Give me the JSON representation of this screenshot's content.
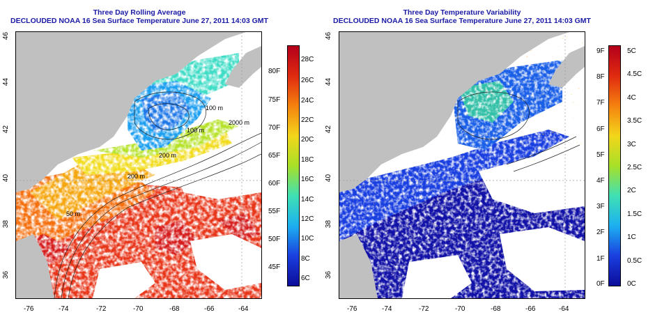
{
  "panels": {
    "avg": {
      "title": "Three Day Rolling Average",
      "subtitle": "DECLOUDED NOAA 16 Sea Surface Temperature June 27, 2011 14:03 GMT",
      "x_ticks": [
        "-76",
        "-74",
        "-72",
        "-70",
        "-68",
        "-66",
        "-64"
      ],
      "y_ticks": [
        "36",
        "38",
        "40",
        "42",
        "44",
        "46"
      ],
      "contours": [
        "100 m",
        "2000 m",
        "100 m",
        "200 m",
        "50 m",
        "200 m"
      ],
      "colorbar_celsius": [
        "28C",
        "26C",
        "24C",
        "22C",
        "20C",
        "18C",
        "16C",
        "14C",
        "12C",
        "10C",
        "8C",
        "6C"
      ],
      "colorbar_fahrenheit": [
        "80F",
        "75F",
        "70F",
        "65F",
        "60F",
        "55F",
        "50F",
        "45F"
      ],
      "colorbar_colors": [
        "#b3001b",
        "#e02a10",
        "#f5820f",
        "#f3d61b",
        "#a8e028",
        "#3fe0b4",
        "#1cb0f0",
        "#1a3fe0",
        "#0c0c99"
      ]
    },
    "var": {
      "title": "Three Day Temperature Variability",
      "subtitle": "DECLOUDED NOAA 16 Sea Surface Temperature June 27, 2011 14:03 GMT",
      "x_ticks": [
        "-76",
        "-74",
        "-72",
        "-70",
        "-68",
        "-66",
        "-64"
      ],
      "y_ticks": [
        "36",
        "38",
        "40",
        "42",
        "44",
        "46"
      ],
      "colorbar_celsius": [
        "5C",
        "4.5C",
        "4C",
        "3.5C",
        "3C",
        "2.5C",
        "2C",
        "1.5C",
        "1C",
        "0.5C",
        "0C"
      ],
      "colorbar_fahrenheit": [
        "9F",
        "8F",
        "7F",
        "6F",
        "5F",
        "4F",
        "3F",
        "2F",
        "1F",
        "0F"
      ],
      "colorbar_colors": [
        "#b3001b",
        "#e02a10",
        "#f5820f",
        "#f3d61b",
        "#a8e028",
        "#3fe0b4",
        "#1cb0f0",
        "#1a3fe0",
        "#0c0c99"
      ]
    }
  },
  "colors": {
    "land": "#c0c0c0",
    "cloud_mask": "#ffffff",
    "title": "#1a1aa6",
    "contour": "#222222",
    "grid": "#9a9a9a"
  }
}
